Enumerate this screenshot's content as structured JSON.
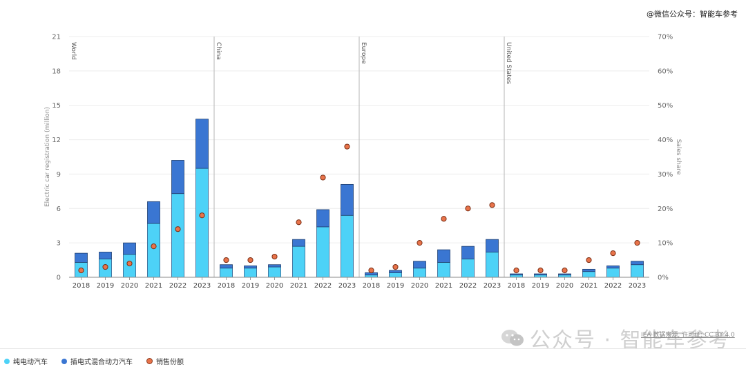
{
  "watermark_top": "@微信公众号：智能车参考",
  "watermark_bottom": "公众号 · 智能车参考",
  "credit": "IEA 数据来源, 许可证: CC BY 4.0",
  "legend": [
    {
      "label": "纯电动汽车",
      "color": "#4dd2f7"
    },
    {
      "label": "插电式混合动力汽车",
      "color": "#3a76d2"
    },
    {
      "label": "销售份额",
      "color": "#e8734a"
    }
  ],
  "chart_data": {
    "type": "bar",
    "subtype": "stacked bar with secondary-axis scatter",
    "ylabel": "Electric car registration (million)",
    "y2label": "Sales share",
    "ylim": [
      0,
      21
    ],
    "yticks": [
      "0",
      "3",
      "6",
      "9",
      "12",
      "15",
      "18",
      "21"
    ],
    "y2lim": [
      0,
      70
    ],
    "y2ticks": [
      "0%",
      "10%",
      "20%",
      "30%",
      "40%",
      "50%",
      "60%",
      "70%"
    ],
    "grid": true,
    "legend_position": "bottom-left",
    "colors": {
      "bev": "#4dd2f7",
      "phev": "#3a76d2",
      "share": "#e8734a"
    },
    "groups": [
      {
        "region": "World",
        "categories": [
          "2018",
          "2019",
          "2020",
          "2021",
          "2022",
          "2023"
        ],
        "bev": [
          1.3,
          1.6,
          2.0,
          4.7,
          7.3,
          9.5
        ],
        "phev": [
          0.8,
          0.6,
          1.0,
          1.9,
          2.9,
          4.3
        ],
        "share": [
          2,
          3,
          4,
          9,
          14,
          18
        ]
      },
      {
        "region": "China",
        "categories": [
          "2018",
          "2019",
          "2020",
          "2021",
          "2022",
          "2023"
        ],
        "bev": [
          0.8,
          0.8,
          0.9,
          2.7,
          4.4,
          5.4
        ],
        "phev": [
          0.3,
          0.2,
          0.2,
          0.6,
          1.5,
          2.7
        ],
        "share": [
          5,
          5,
          6,
          16,
          29,
          38
        ]
      },
      {
        "region": "Europe",
        "categories": [
          "2018",
          "2019",
          "2020",
          "2021",
          "2022",
          "2023"
        ],
        "bev": [
          0.2,
          0.4,
          0.8,
          1.3,
          1.6,
          2.2
        ],
        "phev": [
          0.2,
          0.2,
          0.6,
          1.1,
          1.1,
          1.1
        ],
        "share": [
          2,
          3,
          10,
          17,
          20,
          21
        ]
      },
      {
        "region": "United States",
        "categories": [
          "2018",
          "2019",
          "2020",
          "2021",
          "2022",
          "2023"
        ],
        "bev": [
          0.2,
          0.2,
          0.2,
          0.5,
          0.8,
          1.1
        ],
        "phev": [
          0.1,
          0.1,
          0.1,
          0.2,
          0.2,
          0.3
        ],
        "share": [
          2,
          2,
          2,
          5,
          7,
          10
        ]
      }
    ]
  }
}
